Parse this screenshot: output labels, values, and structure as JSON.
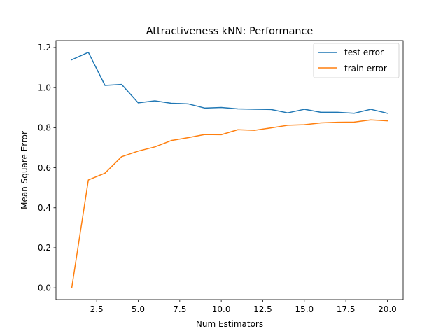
{
  "chart_data": {
    "type": "line",
    "title": "Attractiveness kNN: Performance",
    "xlabel": "Num Estimators",
    "ylabel": "Mean Square Error",
    "xlim": [
      0.05,
      20.95
    ],
    "ylim": [
      -0.0588,
      1.2348
    ],
    "xticks": [
      2.5,
      5.0,
      7.5,
      10.0,
      12.5,
      15.0,
      17.5,
      20.0
    ],
    "xtick_labels": [
      "2.5",
      "5.0",
      "7.5",
      "10.0",
      "12.5",
      "15.0",
      "17.5",
      "20.0"
    ],
    "yticks": [
      0.0,
      0.2,
      0.4,
      0.6,
      0.8,
      1.0,
      1.2
    ],
    "ytick_labels": [
      "0.0",
      "0.2",
      "0.4",
      "0.6",
      "0.8",
      "1.0",
      "1.2"
    ],
    "grid": false,
    "legend_position": "top-right",
    "x": [
      1,
      2,
      3,
      4,
      5,
      6,
      7,
      8,
      9,
      10,
      11,
      12,
      13,
      14,
      15,
      16,
      17,
      18,
      19,
      20
    ],
    "series": [
      {
        "name": "test error",
        "color": "#1f77b4",
        "values": [
          1.139,
          1.176,
          1.011,
          1.016,
          0.924,
          0.934,
          0.922,
          0.919,
          0.898,
          0.901,
          0.894,
          0.892,
          0.891,
          0.874,
          0.892,
          0.877,
          0.877,
          0.872,
          0.892,
          0.872
        ]
      },
      {
        "name": "train error",
        "color": "#ff7f0e",
        "values": [
          0.0,
          0.539,
          0.573,
          0.655,
          0.683,
          0.704,
          0.736,
          0.75,
          0.766,
          0.765,
          0.79,
          0.787,
          0.799,
          0.812,
          0.815,
          0.824,
          0.827,
          0.828,
          0.839,
          0.834
        ]
      }
    ]
  }
}
